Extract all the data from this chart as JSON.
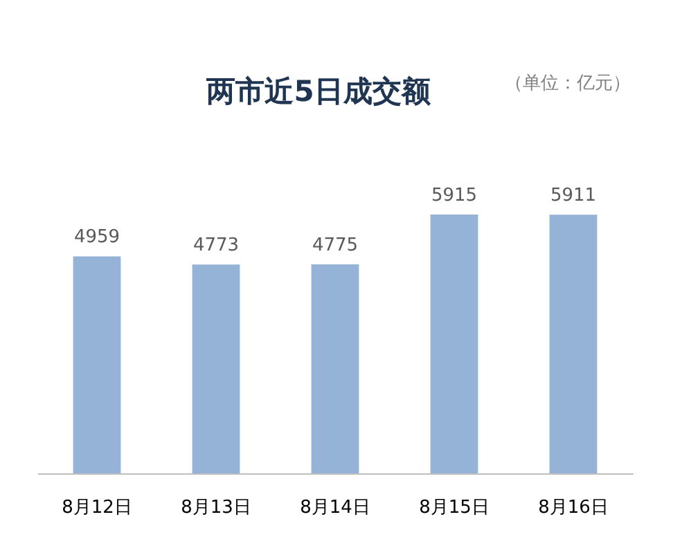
{
  "chart_data": {
    "type": "bar",
    "title": "两市近5日成交额",
    "annotations": [
      "（单位：亿元）"
    ],
    "categories": [
      "8月12日",
      "8月13日",
      "8月14日",
      "8月15日",
      "8月16日"
    ],
    "values": [
      4959,
      4773,
      4775,
      5915,
      5911
    ],
    "color": "#95b3d7",
    "data_labels": true,
    "tick_labels": "x"
  }
}
